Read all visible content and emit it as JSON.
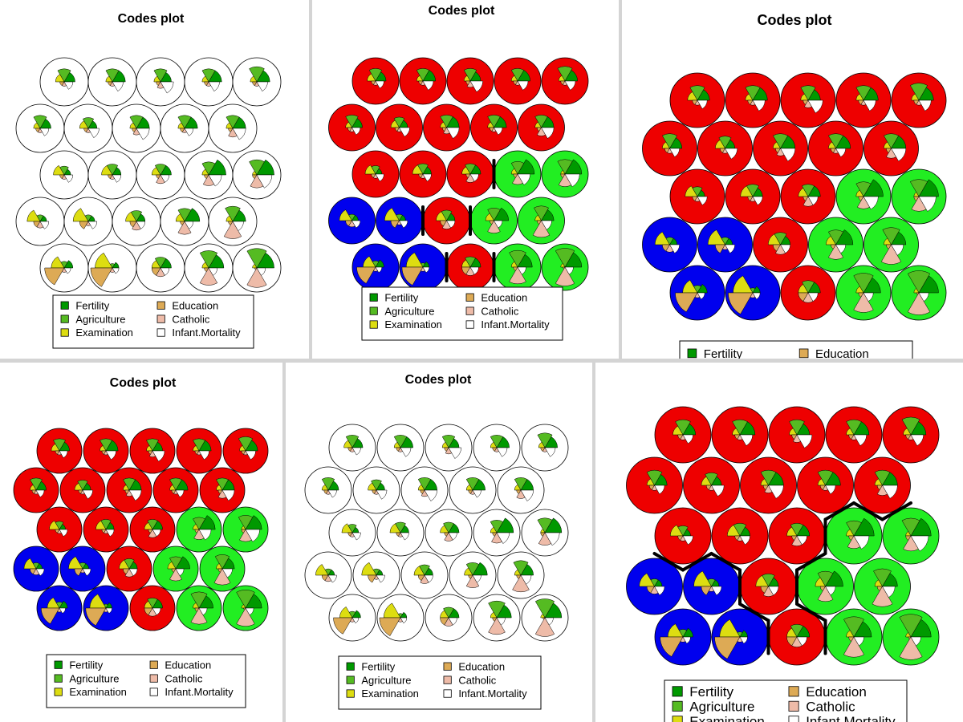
{
  "chart_data": {
    "type": "som-codes",
    "title": "Codes plot",
    "grid": {
      "rows": 5,
      "cols": 5,
      "topology": "hexagonal"
    },
    "variables": [
      {
        "name": "Fertility",
        "color": "#009900"
      },
      {
        "name": "Agriculture",
        "color": "#55bb22"
      },
      {
        "name": "Examination",
        "color": "#dddd11"
      },
      {
        "name": "Education",
        "color": "#ddaa55"
      },
      {
        "name": "Catholic",
        "color": "#eebba8"
      },
      {
        "name": "Infant.Mortality",
        "color": "#ffffff"
      }
    ],
    "codes": [
      [
        0.4,
        0.3,
        0.6,
        0.9,
        0.2,
        0.3
      ],
      [
        0.3,
        0.2,
        0.8,
        1.0,
        0.2,
        0.3
      ],
      [
        0.5,
        0.5,
        0.4,
        0.4,
        0.4,
        0.4
      ],
      [
        0.7,
        0.8,
        0.3,
        0.2,
        0.8,
        0.4
      ],
      [
        0.8,
        0.9,
        0.2,
        0.1,
        0.9,
        0.4
      ],
      [
        0.3,
        0.3,
        0.6,
        0.3,
        0.3,
        0.4
      ],
      [
        0.3,
        0.3,
        0.7,
        0.4,
        0.2,
        0.4
      ],
      [
        0.4,
        0.5,
        0.5,
        0.3,
        0.4,
        0.4
      ],
      [
        0.7,
        0.6,
        0.4,
        0.2,
        0.6,
        0.4
      ],
      [
        0.6,
        0.7,
        0.3,
        0.2,
        0.8,
        0.5
      ],
      [
        0.3,
        0.4,
        0.5,
        0.2,
        0.2,
        0.4
      ],
      [
        0.4,
        0.5,
        0.5,
        0.2,
        0.2,
        0.4
      ],
      [
        0.5,
        0.5,
        0.4,
        0.2,
        0.4,
        0.4
      ],
      [
        0.8,
        0.6,
        0.3,
        0.2,
        0.5,
        0.6
      ],
      [
        0.8,
        0.7,
        0.2,
        0.2,
        0.6,
        0.7
      ],
      [
        0.5,
        0.6,
        0.3,
        0.2,
        0.2,
        0.4
      ],
      [
        0.4,
        0.5,
        0.4,
        0.2,
        0.2,
        0.5
      ],
      [
        0.6,
        0.6,
        0.3,
        0.2,
        0.3,
        0.6
      ],
      [
        0.6,
        0.6,
        0.3,
        0.2,
        0.2,
        0.4
      ],
      [
        0.6,
        0.6,
        0.3,
        0.2,
        0.4,
        0.6
      ],
      [
        0.5,
        0.6,
        0.4,
        0.2,
        0.2,
        0.4
      ],
      [
        0.6,
        0.6,
        0.3,
        0.2,
        0.2,
        0.5
      ],
      [
        0.5,
        0.6,
        0.3,
        0.2,
        0.3,
        0.6
      ],
      [
        0.6,
        0.6,
        0.3,
        0.2,
        0.2,
        0.5
      ],
      [
        0.6,
        0.7,
        0.3,
        0.2,
        0.2,
        0.5
      ]
    ],
    "cluster_colors": {
      "blue": "#0000ee",
      "red": "#ee0000",
      "green": "#22ee22"
    },
    "clusters": [
      "blue",
      "blue",
      "red",
      "green",
      "green",
      "blue",
      "blue",
      "red",
      "green",
      "green",
      "red",
      "red",
      "red",
      "green",
      "green",
      "red",
      "red",
      "red",
      "red",
      "red",
      "red",
      "red",
      "red",
      "red",
      "red"
    ],
    "panels": [
      {
        "background": "none",
        "boundaries": false
      },
      {
        "background": "clusters",
        "boundaries": true
      },
      {
        "background": "clusters",
        "boundaries": false
      },
      {
        "background": "clusters",
        "boundaries": false
      },
      {
        "background": "none",
        "boundaries": false
      },
      {
        "background": "clusters",
        "boundaries": true
      }
    ]
  }
}
